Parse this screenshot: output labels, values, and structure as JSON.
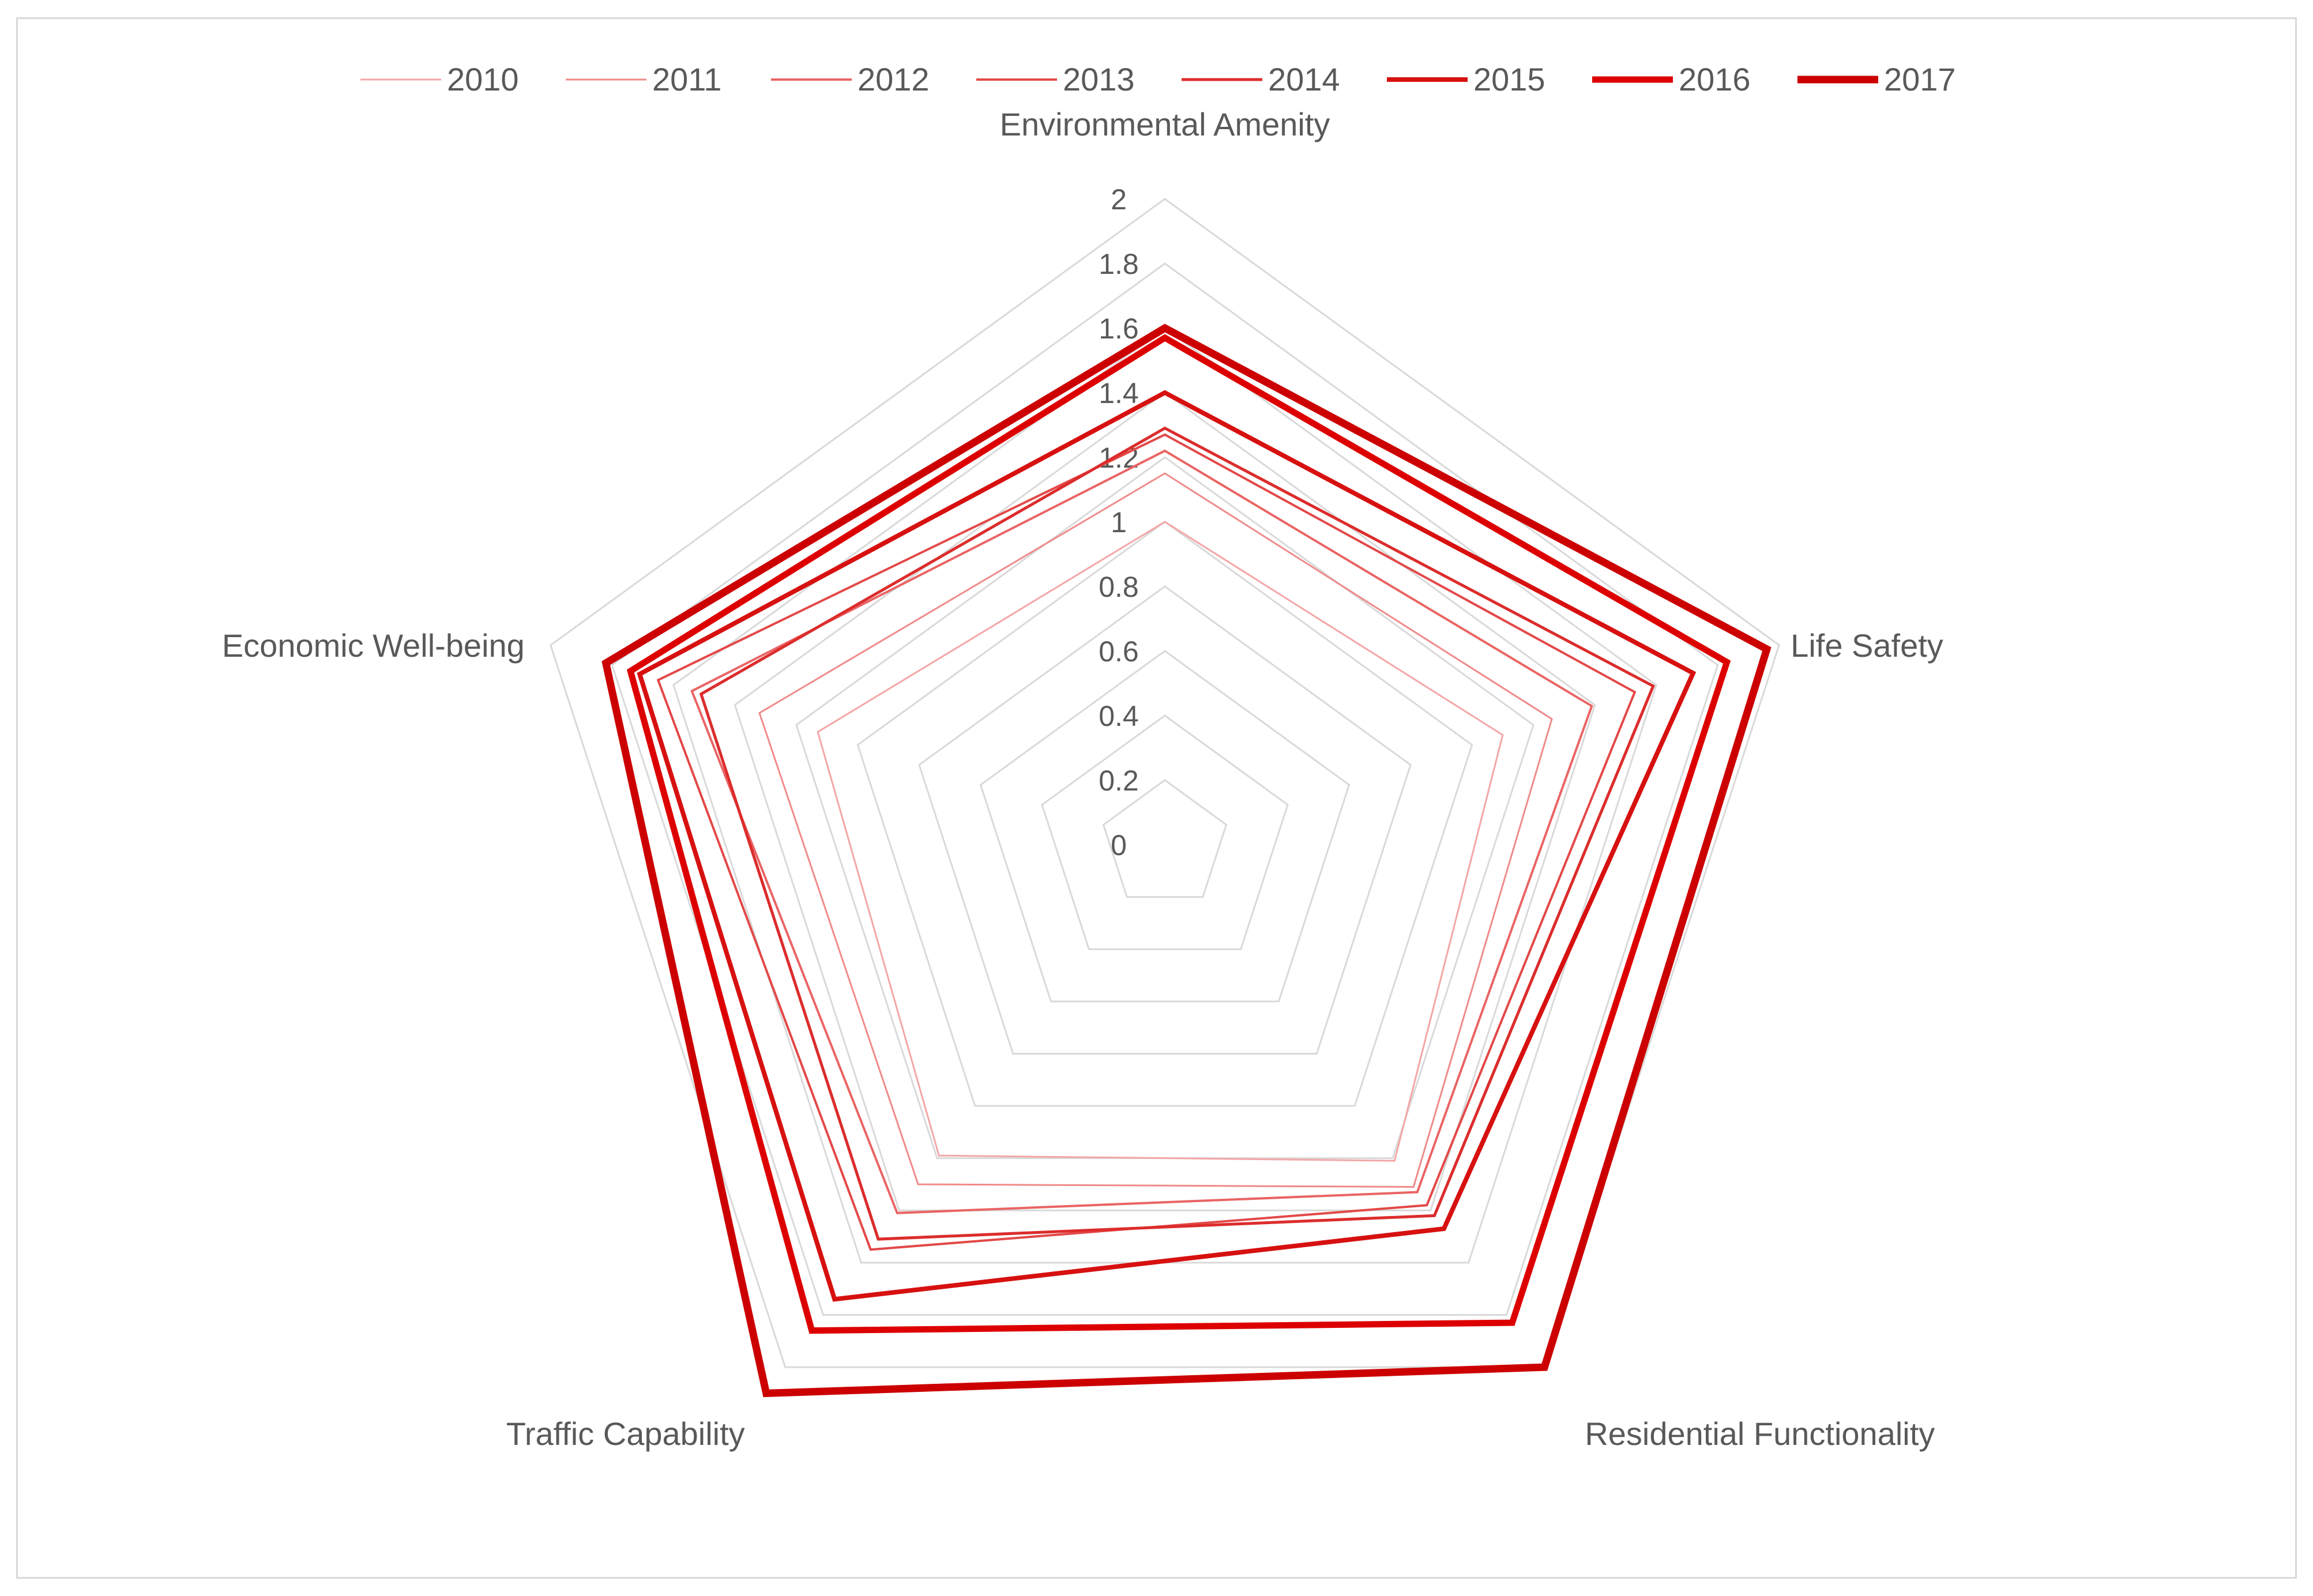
{
  "chart_data": {
    "type": "radar",
    "title": "",
    "axes": [
      "Environmental Amenity",
      "Life Safety",
      "Residential Functionality",
      "Traffic Capability",
      "Economic Well-being"
    ],
    "rlim": [
      0,
      2
    ],
    "ticks": [
      "0",
      "0.2",
      "0.4",
      "0.6",
      "0.8",
      "1",
      "1.2",
      "1.4",
      "1.6",
      "1.8",
      "2"
    ],
    "tick_values": [
      0,
      0.2,
      0.4,
      0.6,
      0.8,
      1.0,
      1.2,
      1.4,
      1.6,
      1.8,
      2.0
    ],
    "grid": true,
    "legend_position": "top",
    "series": [
      {
        "name": "2010",
        "values": [
          1.0,
          1.1,
          1.21,
          1.19,
          1.13
        ],
        "color": "#f4a6a6"
      },
      {
        "name": "2011",
        "values": [
          1.15,
          1.26,
          1.31,
          1.3,
          1.32
        ],
        "color": "#f08a8a"
      },
      {
        "name": "2012",
        "values": [
          1.22,
          1.39,
          1.33,
          1.41,
          1.54
        ],
        "color": "#ea6464"
      },
      {
        "name": "2013",
        "values": [
          1.27,
          1.53,
          1.38,
          1.55,
          1.65
        ],
        "color": "#e34848"
      },
      {
        "name": "2014",
        "values": [
          1.29,
          1.59,
          1.42,
          1.51,
          1.51
        ],
        "color": "#dc2c2c"
      },
      {
        "name": "2015",
        "values": [
          1.4,
          1.72,
          1.47,
          1.74,
          1.71
        ],
        "color": "#d71010"
      },
      {
        "name": "2016",
        "values": [
          1.57,
          1.83,
          1.83,
          1.86,
          1.74
        ],
        "color": "#dd0000"
      },
      {
        "name": "2017",
        "values": [
          1.6,
          1.96,
          2.0,
          2.1,
          1.82
        ],
        "color": "#cc0000"
      }
    ]
  }
}
